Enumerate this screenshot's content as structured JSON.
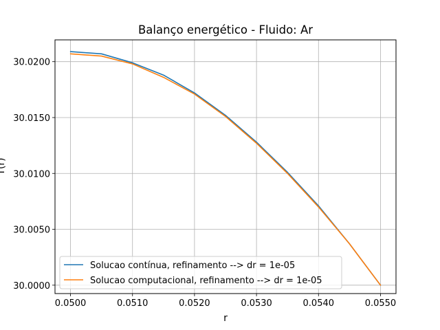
{
  "chart_data": {
    "type": "line",
    "title": "Balanço energético - Fluido: Ar",
    "xlabel": "r",
    "ylabel": "T(r)",
    "xlim": [
      0.04975,
      0.05525
    ],
    "ylim": [
      29.99925,
      30.02195
    ],
    "xticks": [
      {
        "value": 0.05,
        "label": "0.0500"
      },
      {
        "value": 0.051,
        "label": "0.0510"
      },
      {
        "value": 0.052,
        "label": "0.0520"
      },
      {
        "value": 0.053,
        "label": "0.0530"
      },
      {
        "value": 0.054,
        "label": "0.0540"
      },
      {
        "value": 0.055,
        "label": "0.0550"
      }
    ],
    "yticks": [
      {
        "value": 30.0,
        "label": "30.0000"
      },
      {
        "value": 30.005,
        "label": "30.0050"
      },
      {
        "value": 30.01,
        "label": "30.0100"
      },
      {
        "value": 30.015,
        "label": "30.0150"
      },
      {
        "value": 30.02,
        "label": "30.0200"
      }
    ],
    "grid": true,
    "legend_position": "lower-left",
    "series": [
      {
        "name": "Solucao contínua, refinamento --> dr = 1e-05",
        "color": "#1f77b4",
        "x": [
          0.05,
          0.0505,
          0.051,
          0.0515,
          0.052,
          0.0525,
          0.053,
          0.0535,
          0.054,
          0.0545,
          0.055
        ],
        "y": [
          30.0209,
          30.0207,
          30.0199,
          30.0188,
          30.0172,
          30.0152,
          30.0128,
          30.0101,
          30.0071,
          30.0037,
          30.0
        ]
      },
      {
        "name": "Solucao computacional, refinamento --> dr = 1e-05",
        "color": "#ff7f0e",
        "x": [
          0.05,
          0.0505,
          0.051,
          0.0515,
          0.052,
          0.0525,
          0.053,
          0.0535,
          0.054,
          0.0545,
          0.055
        ],
        "y": [
          30.0207,
          30.0205,
          30.0198,
          30.0186,
          30.0171,
          30.0151,
          30.0127,
          30.01,
          30.007,
          30.0037,
          30.0
        ]
      }
    ]
  }
}
